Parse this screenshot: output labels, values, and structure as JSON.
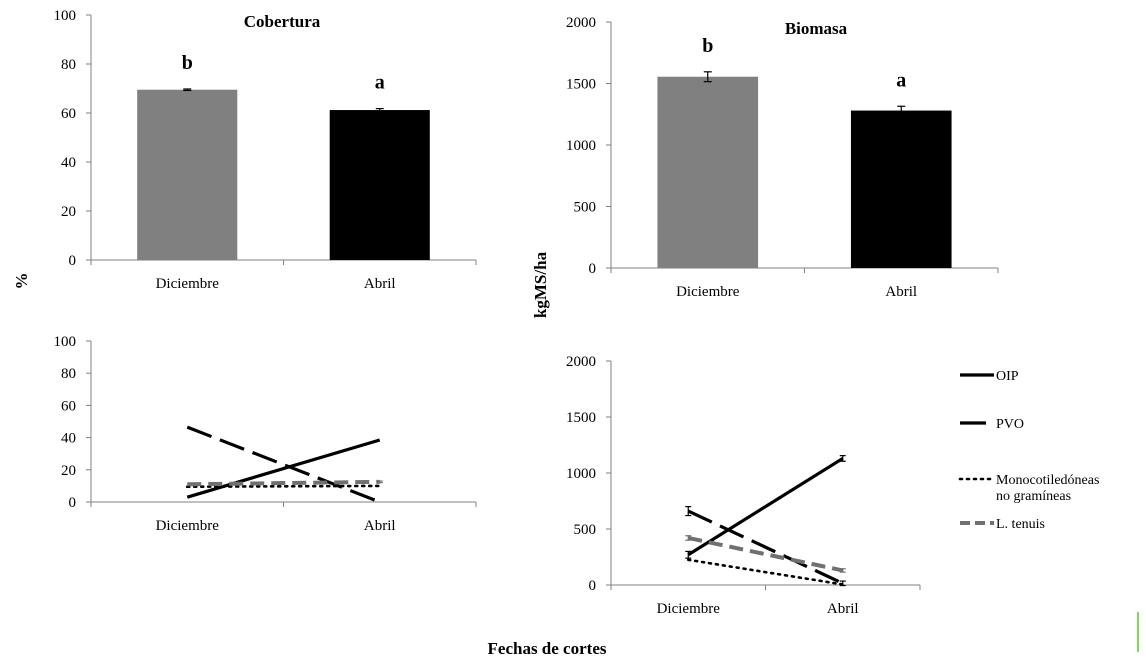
{
  "xlabel": "Fechas de cortes",
  "ylabel_left": "%",
  "ylabel_right": "kgMS/ha",
  "chart_data": [
    {
      "type": "bar",
      "title": "Cobertura",
      "categories": [
        "Diciembre",
        "Abril"
      ],
      "values": [
        69.5,
        61.2
      ],
      "errors": [
        0.3,
        0.6
      ],
      "letters": [
        "b",
        "a"
      ],
      "colors": [
        "#808080",
        "#000000"
      ],
      "ylim": [
        0,
        100
      ],
      "yticks": [
        0,
        20,
        40,
        60,
        80,
        100
      ]
    },
    {
      "type": "bar",
      "title": "Biomasa",
      "categories": [
        "Diciembre",
        "Abril"
      ],
      "values": [
        1555,
        1280
      ],
      "errors": [
        40,
        35
      ],
      "letters": [
        "b",
        "a"
      ],
      "colors": [
        "#808080",
        "#000000"
      ],
      "ylim": [
        0,
        2000
      ],
      "yticks": [
        0,
        500,
        1000,
        1500,
        2000
      ]
    },
    {
      "type": "line",
      "categories": [
        "Diciembre",
        "Abril"
      ],
      "ylim": [
        0,
        100
      ],
      "yticks": [
        0,
        20,
        40,
        60,
        80,
        100
      ],
      "series": [
        {
          "key": "OIP",
          "values": [
            3,
            38.5
          ],
          "errors": [
            0,
            0
          ],
          "color": "#000000",
          "dash": "solid"
        },
        {
          "key": "PVO",
          "values": [
            46.5,
            0
          ],
          "errors": [
            0,
            0
          ],
          "color": "#000000",
          "dash": "longdash"
        },
        {
          "key": "Mono",
          "values": [
            9.5,
            10
          ],
          "errors": [
            0,
            0
          ],
          "color": "#000000",
          "dash": "dot"
        },
        {
          "key": "LT",
          "values": [
            11,
            12.5
          ],
          "errors": [
            0,
            0.5
          ],
          "color": "#707070",
          "dash": "dash"
        }
      ]
    },
    {
      "type": "line",
      "categories": [
        "Diciembre",
        "Abril"
      ],
      "ylim": [
        0,
        2000
      ],
      "yticks": [
        0,
        500,
        1000,
        1500,
        2000
      ],
      "legend_position": "right",
      "series": [
        {
          "name": "OIP",
          "values": [
            270,
            1130
          ],
          "errors": [
            30,
            25
          ],
          "color": "#000000",
          "dash": "solid"
        },
        {
          "name": "PVO",
          "values": [
            660,
            15
          ],
          "errors": [
            40,
            20
          ],
          "color": "#000000",
          "dash": "longdash"
        },
        {
          "name": "Monocotiledóneas",
          "name2": "no gramíneas",
          "values": [
            225,
            5
          ],
          "errors": [
            0,
            0
          ],
          "color": "#000000",
          "dash": "dot"
        },
        {
          "name": "L. tenuis",
          "values": [
            420,
            130
          ],
          "errors": [
            20,
            15
          ],
          "color": "#707070",
          "dash": "dash"
        }
      ]
    }
  ]
}
